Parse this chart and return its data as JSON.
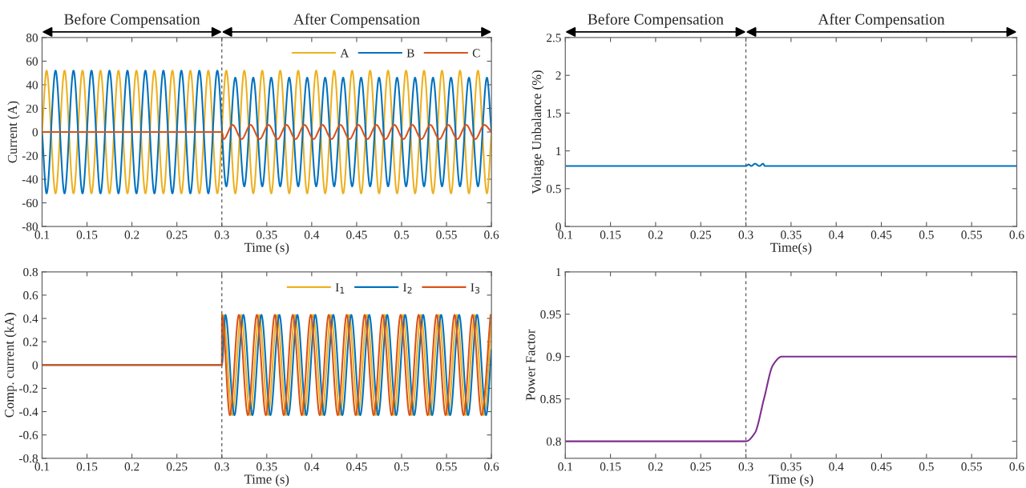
{
  "chart_data": [
    {
      "type": "line",
      "xlabel": "Time (s)",
      "ylabel": "Current (A)",
      "xlim": [
        0.1,
        0.6
      ],
      "ylim": [
        -80,
        80
      ],
      "xticks": [
        0.1,
        0.15,
        0.2,
        0.25,
        0.3,
        0.35,
        0.4,
        0.45,
        0.5,
        0.55,
        0.6
      ],
      "yticks": [
        -80,
        -60,
        -40,
        -20,
        0,
        20,
        40,
        60,
        80
      ],
      "grid": false,
      "legend": "top right",
      "annotations": [
        "Before Compensation",
        "After Compensation"
      ],
      "ref_lines": [
        {
          "axis": "x",
          "value": 0.3,
          "color": "#555555",
          "line_style": "dashed"
        }
      ],
      "series": [
        {
          "name": "A",
          "color": "#edb120",
          "x": [
            0.1,
            0.105,
            0.115,
            0.125,
            0.135,
            0.145,
            0.155,
            0.165,
            0.175,
            0.185,
            0.195,
            0.205,
            0.215,
            0.225,
            0.235,
            0.245,
            0.255,
            0.265,
            0.275,
            0.285,
            0.295,
            0.305,
            0.315,
            0.325,
            0.335,
            0.345,
            0.355,
            0.365,
            0.375,
            0.385,
            0.395,
            0.405,
            0.415,
            0.425,
            0.435,
            0.445,
            0.455,
            0.465,
            0.475,
            0.485,
            0.495,
            0.505,
            0.515,
            0.525,
            0.535,
            0.545,
            0.555,
            0.565,
            0.575,
            0.585,
            0.595,
            0.6
          ],
          "values": [
            0,
            52,
            -52,
            52,
            -52,
            52,
            -52,
            52,
            -52,
            52,
            -52,
            52,
            -52,
            52,
            -52,
            52,
            -52,
            52,
            -52,
            52,
            -52,
            52,
            -52,
            52,
            -52,
            52,
            -52,
            52,
            -52,
            52,
            -52,
            52,
            -52,
            52,
            -52,
            52,
            -52,
            52,
            -52,
            52,
            -52,
            52,
            -52,
            52,
            -52,
            52,
            -52,
            52,
            -52,
            52,
            -52,
            0
          ]
        },
        {
          "name": "B",
          "color": "#0072bd",
          "x": [
            0.1,
            0.105,
            0.115,
            0.125,
            0.135,
            0.145,
            0.155,
            0.165,
            0.175,
            0.185,
            0.195,
            0.205,
            0.215,
            0.225,
            0.235,
            0.245,
            0.255,
            0.265,
            0.275,
            0.285,
            0.295,
            0.305,
            0.315,
            0.325,
            0.335,
            0.345,
            0.355,
            0.365,
            0.375,
            0.385,
            0.395,
            0.405,
            0.415,
            0.425,
            0.435,
            0.445,
            0.455,
            0.465,
            0.475,
            0.485,
            0.495,
            0.505,
            0.515,
            0.525,
            0.535,
            0.545,
            0.555,
            0.565,
            0.575,
            0.585,
            0.595,
            0.6
          ],
          "values": [
            0,
            -52,
            52,
            -52,
            52,
            -52,
            52,
            -52,
            52,
            -52,
            52,
            -52,
            52,
            -52,
            52,
            -52,
            52,
            -52,
            52,
            -52,
            52,
            -46,
            46,
            -46,
            46,
            -46,
            46,
            -46,
            46,
            -46,
            46,
            -46,
            46,
            -46,
            46,
            -46,
            46,
            -46,
            46,
            -46,
            46,
            -46,
            46,
            -46,
            46,
            -46,
            46,
            -46,
            46,
            -46,
            46,
            0
          ]
        },
        {
          "name": "C",
          "color": "#d95319",
          "x": [
            0.1,
            0.3,
            0.302,
            0.312,
            0.322,
            0.332,
            0.342,
            0.352,
            0.362,
            0.372,
            0.382,
            0.392,
            0.402,
            0.412,
            0.422,
            0.432,
            0.442,
            0.452,
            0.462,
            0.472,
            0.482,
            0.492,
            0.502,
            0.512,
            0.522,
            0.532,
            0.542,
            0.552,
            0.562,
            0.572,
            0.582,
            0.592,
            0.6
          ],
          "values": [
            0,
            0,
            -6,
            6,
            -6,
            6,
            -6,
            6,
            -6,
            6,
            -6,
            6,
            -6,
            6,
            -6,
            6,
            -6,
            6,
            -6,
            6,
            -6,
            6,
            -6,
            6,
            -6,
            6,
            -6,
            6,
            -6,
            6,
            -6,
            6,
            0
          ]
        }
      ]
    },
    {
      "type": "line",
      "xlabel": "Time(s)",
      "ylabel": "Voltage Unbalance (%)",
      "xlim": [
        0.1,
        0.6
      ],
      "ylim": [
        0,
        2.5
      ],
      "xticks": [
        0.1,
        0.15,
        0.2,
        0.25,
        0.3,
        0.35,
        0.4,
        0.45,
        0.5,
        0.55,
        0.6
      ],
      "yticks": [
        0,
        0.5,
        1,
        1.5,
        2,
        2.5
      ],
      "grid": false,
      "annotations": [
        "Before Compensation",
        "After Compensation"
      ],
      "ref_lines": [
        {
          "axis": "x",
          "value": 0.3,
          "color": "#555555",
          "line_style": "dashed"
        }
      ],
      "series": [
        {
          "color": "#0072bd",
          "x": [
            0.1,
            0.3,
            0.303,
            0.306,
            0.31,
            0.315,
            0.319,
            0.321,
            0.6
          ],
          "values": [
            0.8,
            0.8,
            0.82,
            0.8,
            0.83,
            0.8,
            0.83,
            0.8,
            0.8
          ]
        }
      ]
    },
    {
      "type": "line",
      "xlabel": "Time (s)",
      "ylabel": "Comp. current (kA)",
      "xlim": [
        0.1,
        0.6
      ],
      "ylim": [
        -0.8,
        0.8
      ],
      "xticks": [
        0.1,
        0.15,
        0.2,
        0.25,
        0.3,
        0.35,
        0.4,
        0.45,
        0.5,
        0.55,
        0.6
      ],
      "yticks": [
        -0.8,
        -0.6,
        -0.4,
        -0.2,
        0,
        0.2,
        0.4,
        0.6,
        0.8
      ],
      "grid": false,
      "legend": "top right",
      "ref_lines": [
        {
          "axis": "x",
          "value": 0.3,
          "color": "#555555",
          "line_style": "dashed"
        }
      ],
      "series": [
        {
          "name": "I$_{1}$",
          "color": "#edb120",
          "x": [
            0.1,
            0.3,
            0.3015,
            0.3115,
            0.3215,
            0.3315,
            0.3415,
            0.3515,
            0.3615,
            0.3715,
            0.3815,
            0.3915,
            0.4015,
            0.4115,
            0.4215,
            0.4315,
            0.4415,
            0.4515,
            0.4615,
            0.4715,
            0.4815,
            0.4915,
            0.5015,
            0.5115,
            0.5215,
            0.5315,
            0.5415,
            0.5515,
            0.5615,
            0.5715,
            0.5815,
            0.5915,
            0.6
          ],
          "values": [
            0,
            0,
            0.43,
            -0.43,
            0.43,
            -0.43,
            0.43,
            -0.43,
            0.43,
            -0.43,
            0.43,
            -0.43,
            0.43,
            -0.43,
            0.43,
            -0.43,
            0.43,
            -0.43,
            0.43,
            -0.43,
            0.43,
            -0.43,
            0.43,
            -0.43,
            0.43,
            -0.43,
            0.43,
            -0.43,
            0.43,
            -0.43,
            0.43,
            -0.43,
            0.38
          ]
        },
        {
          "name": "I$_{2}$",
          "color": "#0072bd",
          "x": [
            0.1,
            0.3,
            0.304,
            0.314,
            0.324,
            0.334,
            0.344,
            0.354,
            0.364,
            0.374,
            0.384,
            0.394,
            0.404,
            0.414,
            0.424,
            0.434,
            0.444,
            0.454,
            0.464,
            0.474,
            0.484,
            0.494,
            0.504,
            0.514,
            0.524,
            0.534,
            0.544,
            0.554,
            0.564,
            0.574,
            0.584,
            0.594,
            0.6
          ],
          "values": [
            0,
            0,
            0.43,
            -0.43,
            0.43,
            -0.43,
            0.43,
            -0.43,
            0.43,
            -0.43,
            0.43,
            -0.43,
            0.43,
            -0.43,
            0.43,
            -0.43,
            0.43,
            -0.43,
            0.43,
            -0.43,
            0.43,
            -0.43,
            0.43,
            -0.43,
            0.43,
            -0.43,
            0.43,
            -0.43,
            0.43,
            -0.43,
            0.43,
            -0.43,
            0.13
          ]
        },
        {
          "name": "I$_{3}$",
          "color": "#d95319",
          "x": [
            0.1,
            0.3,
            0.3002,
            0.309,
            0.319,
            0.329,
            0.339,
            0.349,
            0.359,
            0.369,
            0.379,
            0.389,
            0.399,
            0.409,
            0.419,
            0.429,
            0.439,
            0.449,
            0.459,
            0.469,
            0.479,
            0.489,
            0.499,
            0.509,
            0.519,
            0.529,
            0.539,
            0.549,
            0.559,
            0.569,
            0.579,
            0.589,
            0.599
          ],
          "values": [
            0,
            0,
            0.43,
            -0.43,
            0.43,
            -0.43,
            0.43,
            -0.43,
            0.43,
            -0.43,
            0.43,
            -0.43,
            0.43,
            -0.43,
            0.43,
            -0.43,
            0.43,
            -0.43,
            0.43,
            -0.43,
            0.43,
            -0.43,
            0.43,
            -0.43,
            0.43,
            -0.43,
            0.43,
            -0.43,
            0.43,
            -0.43,
            0.43,
            -0.43,
            0.43
          ]
        }
      ]
    },
    {
      "type": "line",
      "xlabel": "Time (s)",
      "ylabel": "Power Factor",
      "xlim": [
        0.1,
        0.6
      ],
      "ylim": [
        0.78,
        1
      ],
      "xticks": [
        0.1,
        0.15,
        0.2,
        0.25,
        0.3,
        0.35,
        0.4,
        0.45,
        0.5,
        0.55,
        0.6
      ],
      "yticks": [
        0.8,
        0.85,
        0.9,
        0.95,
        1
      ],
      "grid": false,
      "ref_lines": [
        {
          "axis": "x",
          "value": 0.3,
          "color": "#555555",
          "line_style": "dashed"
        }
      ],
      "series": [
        {
          "color": "#7e2f8e",
          "x": [
            0.1,
            0.3,
            0.31,
            0.32,
            0.33,
            0.34,
            0.6
          ],
          "values": [
            0.8,
            0.8,
            0.81,
            0.85,
            0.89,
            0.9,
            0.9
          ]
        }
      ]
    }
  ]
}
